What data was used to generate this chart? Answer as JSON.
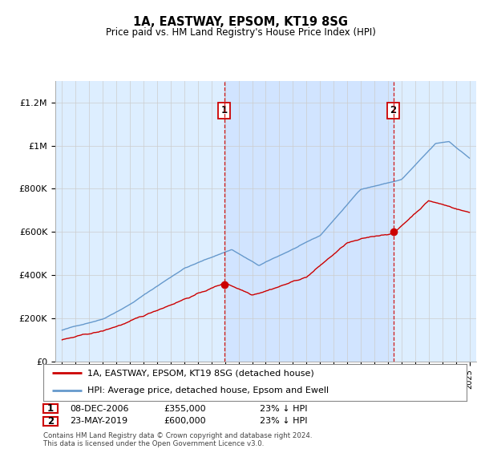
{
  "title": "1A, EASTWAY, EPSOM, KT19 8SG",
  "subtitle": "Price paid vs. HM Land Registry's House Price Index (HPI)",
  "legend_line1": "1A, EASTWAY, EPSOM, KT19 8SG (detached house)",
  "legend_line2": "HPI: Average price, detached house, Epsom and Ewell",
  "footnote": "Contains HM Land Registry data © Crown copyright and database right 2024.\nThis data is licensed under the Open Government Licence v3.0.",
  "sale1_label": "1",
  "sale1_date": "08-DEC-2006",
  "sale1_price": "£355,000",
  "sale1_hpi": "23% ↓ HPI",
  "sale2_label": "2",
  "sale2_date": "23-MAY-2019",
  "sale2_price": "£600,000",
  "sale2_hpi": "23% ↓ HPI",
  "sale1_x": 2006.93,
  "sale1_y": 355000,
  "sale2_x": 2019.39,
  "sale2_y": 600000,
  "ylim_min": 0,
  "ylim_max": 1300000,
  "xlim_min": 1994.5,
  "xlim_max": 2025.5,
  "red_color": "#cc0000",
  "blue_color": "#6699cc",
  "bg_color": "#ddeeff",
  "highlight_color": "#cce0ff",
  "plot_bg": "#ffffff",
  "vline_color": "#cc0000",
  "grid_color": "#cccccc",
  "yticks": [
    0,
    200000,
    400000,
    600000,
    800000,
    1000000,
    1200000
  ],
  "ylabels": [
    "£0",
    "£200K",
    "£400K",
    "£600K",
    "£800K",
    "£1M",
    "£1.2M"
  ]
}
